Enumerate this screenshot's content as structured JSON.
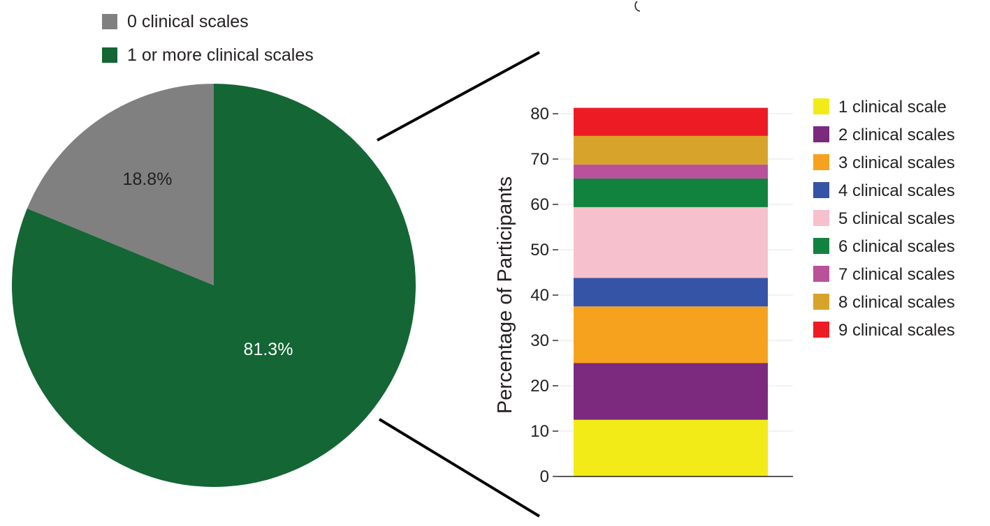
{
  "chart_data": [
    {
      "type": "pie",
      "legend": [
        "0 clinical scales",
        "1 or more clinical scales"
      ],
      "slices": [
        {
          "label": "0 clinical scales",
          "value": 18.8,
          "display": "18.8%",
          "color": "#808080"
        },
        {
          "label": "1 or more clinical scales",
          "value": 81.3,
          "display": "81.3%",
          "color": "#146634"
        }
      ]
    },
    {
      "type": "bar",
      "stacked": true,
      "ylabel": "Percentage of Participants",
      "ylim": [
        0,
        80
      ],
      "yticks": [
        "0",
        "10",
        "20",
        "30",
        "40",
        "50",
        "60",
        "70",
        "80"
      ],
      "series": [
        {
          "name": "1 clinical scale",
          "value": 12.5,
          "color": "#f2eb18"
        },
        {
          "name": "2 clinical scales",
          "value": 12.5,
          "color": "#7b2a7d"
        },
        {
          "name": "3 clinical scales",
          "value": 12.5,
          "color": "#f6a21e"
        },
        {
          "name": "4 clinical scales",
          "value": 6.3,
          "color": "#3654a5"
        },
        {
          "name": "5 clinical scales",
          "value": 15.6,
          "color": "#f6c0cc"
        },
        {
          "name": "6 clinical scales",
          "value": 6.3,
          "color": "#12833f"
        },
        {
          "name": "7 clinical scales",
          "value": 3.1,
          "color": "#ba519b"
        },
        {
          "name": "8 clinical scales",
          "value": 6.3,
          "color": "#d8a32a"
        },
        {
          "name": "9 clinical scales",
          "value": 6.2,
          "color": "#ed1c24"
        }
      ]
    }
  ]
}
